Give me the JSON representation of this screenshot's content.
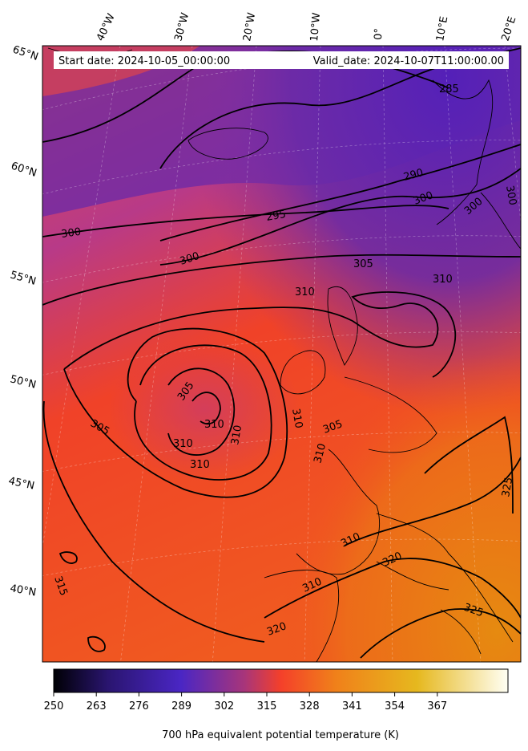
{
  "header": {
    "start_date": "Start date: 2024-10-05_00:00:00",
    "valid_date": "Valid_date: 2024-10-07T11:00:00.00"
  },
  "map": {
    "longitude_labels": [
      "40°W",
      "30°W",
      "20°W",
      "10°W",
      "0°",
      "10°E",
      "20°E"
    ],
    "latitude_labels": [
      "65°N",
      "60°N",
      "55°N",
      "50°N",
      "45°N",
      "40°N"
    ],
    "contour_labels": [
      "285",
      "290",
      "295",
      "300",
      "300",
      "300",
      "300",
      "300",
      "305",
      "305",
      "305",
      "305",
      "310",
      "310",
      "310",
      "310",
      "310",
      "310",
      "310",
      "310",
      "310",
      "310",
      "315",
      "320",
      "320",
      "325",
      "325"
    ]
  },
  "colorbar": {
    "ticks": [
      "250",
      "263",
      "276",
      "289",
      "302",
      "315",
      "328",
      "341",
      "354",
      "367"
    ],
    "label": "700 hPa equivalent potential temperature (K)",
    "colors": [
      "#000004",
      "#2a1570",
      "#4a26c4",
      "#a8357a",
      "#f4402a",
      "#f0801a",
      "#e6b81e",
      "#fffff4"
    ]
  }
}
